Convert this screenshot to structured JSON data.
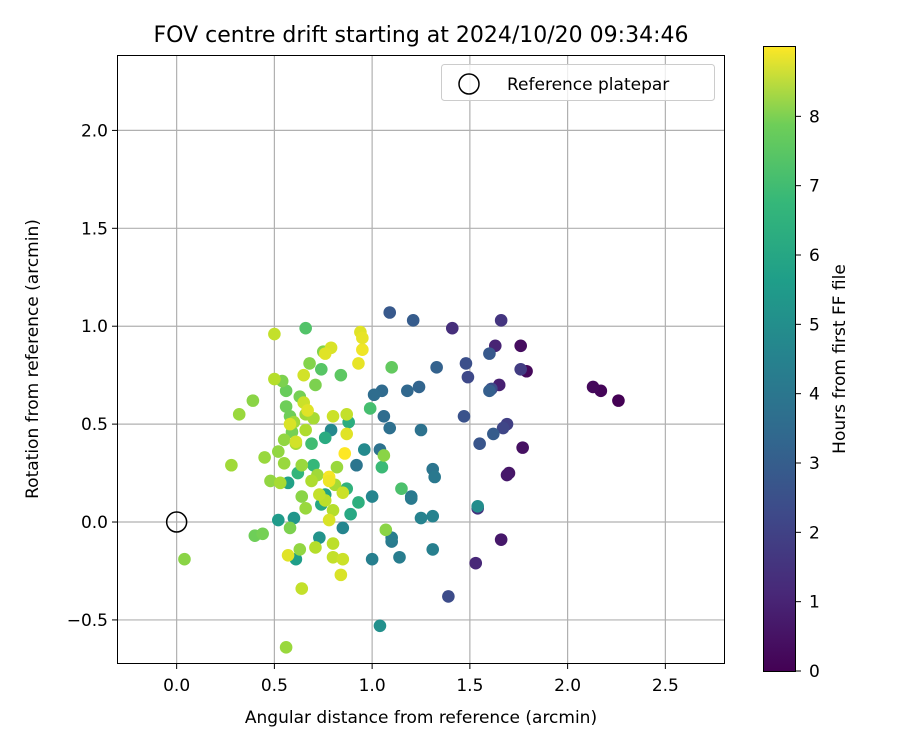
{
  "chart_data": {
    "type": "scatter",
    "title": "FOV centre drift starting at 2024/10/20 09:34:46",
    "xlabel": "Angular distance from reference (arcmin)",
    "ylabel": "Rotation from reference (arcmin)",
    "xlim": [
      -0.3,
      2.8
    ],
    "ylim": [
      -0.72,
      2.38
    ],
    "xticks": [
      0.0,
      0.5,
      1.0,
      1.5,
      2.0,
      2.5
    ],
    "xtick_labels": [
      "0.0",
      "0.5",
      "1.0",
      "1.5",
      "2.0",
      "2.5"
    ],
    "yticks": [
      -0.5,
      0.0,
      0.5,
      1.0,
      1.5,
      2.0
    ],
    "ytick_labels": [
      "−0.5",
      "0.0",
      "0.5",
      "1.0",
      "1.5",
      "2.0"
    ],
    "grid": true,
    "legend": {
      "position": "top-right",
      "entries": [
        "Reference platepar"
      ]
    },
    "reference_point": {
      "x": 0.0,
      "y": 0.0,
      "label": "Reference platepar"
    },
    "colorbar": {
      "label": "Hours from first FF file",
      "colormap": "viridis",
      "range": [
        0,
        9
      ],
      "ticks": [
        0,
        1,
        2,
        3,
        4,
        5,
        6,
        7,
        8
      ]
    },
    "points": [
      {
        "x": 2.26,
        "y": 0.62,
        "c": 0.0
      },
      {
        "x": 2.17,
        "y": 0.67,
        "c": 0.1
      },
      {
        "x": 2.13,
        "y": 0.69,
        "c": 0.2
      },
      {
        "x": 1.79,
        "y": 0.77,
        "c": 0.2
      },
      {
        "x": 1.76,
        "y": 0.9,
        "c": 0.3
      },
      {
        "x": 1.77,
        "y": 0.38,
        "c": 0.4
      },
      {
        "x": 1.7,
        "y": 0.25,
        "c": 0.5
      },
      {
        "x": 1.69,
        "y": 0.24,
        "c": 0.6
      },
      {
        "x": 1.66,
        "y": -0.09,
        "c": 0.6
      },
      {
        "x": 1.65,
        "y": 0.7,
        "c": 0.8
      },
      {
        "x": 1.63,
        "y": 0.9,
        "c": 0.9
      },
      {
        "x": 1.53,
        "y": -0.21,
        "c": 1.0
      },
      {
        "x": 1.41,
        "y": 0.99,
        "c": 1.2
      },
      {
        "x": 1.54,
        "y": 0.07,
        "c": 1.3
      },
      {
        "x": 1.66,
        "y": 1.03,
        "c": 1.4
      },
      {
        "x": 1.76,
        "y": 0.78,
        "c": 1.6
      },
      {
        "x": 1.69,
        "y": 0.5,
        "c": 1.7
      },
      {
        "x": 1.67,
        "y": 0.48,
        "c": 1.9
      },
      {
        "x": 1.49,
        "y": 0.74,
        "c": 2.0
      },
      {
        "x": 1.61,
        "y": 0.68,
        "c": 2.1
      },
      {
        "x": 1.39,
        "y": -0.38,
        "c": 2.1
      },
      {
        "x": 1.48,
        "y": 0.81,
        "c": 2.2
      },
      {
        "x": 1.47,
        "y": 0.54,
        "c": 2.3
      },
      {
        "x": 1.55,
        "y": 0.4,
        "c": 2.4
      },
      {
        "x": 1.6,
        "y": 0.86,
        "c": 2.5
      },
      {
        "x": 1.62,
        "y": 0.45,
        "c": 2.6
      },
      {
        "x": 1.6,
        "y": 0.67,
        "c": 2.7
      },
      {
        "x": 1.09,
        "y": 1.07,
        "c": 2.5
      },
      {
        "x": 1.21,
        "y": 1.03,
        "c": 2.6
      },
      {
        "x": 1.33,
        "y": 0.79,
        "c": 2.8
      },
      {
        "x": 1.24,
        "y": 0.69,
        "c": 2.9
      },
      {
        "x": 1.18,
        "y": 0.67,
        "c": 3.0
      },
      {
        "x": 1.05,
        "y": 0.67,
        "c": 3.1
      },
      {
        "x": 1.01,
        "y": 0.65,
        "c": 3.2
      },
      {
        "x": 1.06,
        "y": 0.54,
        "c": 3.2
      },
      {
        "x": 1.09,
        "y": 0.48,
        "c": 3.3
      },
      {
        "x": 1.25,
        "y": 0.47,
        "c": 3.4
      },
      {
        "x": 1.04,
        "y": 0.37,
        "c": 3.4
      },
      {
        "x": 0.92,
        "y": 0.29,
        "c": 3.5
      },
      {
        "x": 1.31,
        "y": 0.27,
        "c": 3.5
      },
      {
        "x": 1.32,
        "y": 0.23,
        "c": 3.6
      },
      {
        "x": 1.2,
        "y": 0.13,
        "c": 3.6
      },
      {
        "x": 1.2,
        "y": 0.12,
        "c": 3.7
      },
      {
        "x": 1.1,
        "y": -0.1,
        "c": 3.7
      },
      {
        "x": 1.1,
        "y": -0.08,
        "c": 3.8
      },
      {
        "x": 1.14,
        "y": -0.18,
        "c": 3.8
      },
      {
        "x": 1.0,
        "y": -0.19,
        "c": 3.9
      },
      {
        "x": 1.31,
        "y": -0.14,
        "c": 3.9
      },
      {
        "x": 1.25,
        "y": 0.02,
        "c": 4.0
      },
      {
        "x": 1.31,
        "y": 0.03,
        "c": 4.0
      },
      {
        "x": 1.0,
        "y": 0.13,
        "c": 4.1
      },
      {
        "x": 0.85,
        "y": -0.03,
        "c": 4.1
      },
      {
        "x": 0.79,
        "y": 0.47,
        "c": 4.2
      },
      {
        "x": 0.96,
        "y": 0.37,
        "c": 4.3
      },
      {
        "x": 1.54,
        "y": 0.08,
        "c": 4.4
      },
      {
        "x": 1.04,
        "y": -0.53,
        "c": 4.5
      },
      {
        "x": 0.73,
        "y": -0.08,
        "c": 4.6
      },
      {
        "x": 0.6,
        "y": 0.02,
        "c": 4.7
      },
      {
        "x": 0.52,
        "y": 0.01,
        "c": 4.9
      },
      {
        "x": 0.61,
        "y": -0.19,
        "c": 5.0
      },
      {
        "x": 0.57,
        "y": 0.2,
        "c": 5.1
      },
      {
        "x": 0.76,
        "y": 0.14,
        "c": 5.2
      },
      {
        "x": 0.74,
        "y": 0.09,
        "c": 5.3
      },
      {
        "x": 0.89,
        "y": 0.04,
        "c": 5.4
      },
      {
        "x": 0.76,
        "y": 0.43,
        "c": 5.5
      },
      {
        "x": 0.88,
        "y": 0.51,
        "c": 5.6
      },
      {
        "x": 0.93,
        "y": 0.1,
        "c": 5.7
      },
      {
        "x": 0.87,
        "y": 0.17,
        "c": 5.8
      },
      {
        "x": 0.62,
        "y": 0.25,
        "c": 5.9
      },
      {
        "x": 0.7,
        "y": 0.29,
        "c": 6.0
      },
      {
        "x": 1.05,
        "y": 0.28,
        "c": 6.1
      },
      {
        "x": 0.69,
        "y": 0.4,
        "c": 6.2
      },
      {
        "x": 0.99,
        "y": 0.58,
        "c": 6.3
      },
      {
        "x": 1.15,
        "y": 0.17,
        "c": 6.4
      },
      {
        "x": 0.66,
        "y": 0.99,
        "c": 6.5
      },
      {
        "x": 0.74,
        "y": 0.78,
        "c": 6.6
      },
      {
        "x": 0.84,
        "y": 0.75,
        "c": 6.7
      },
      {
        "x": 1.1,
        "y": 0.79,
        "c": 6.8
      },
      {
        "x": 0.56,
        "y": 0.67,
        "c": 6.9
      },
      {
        "x": 0.58,
        "y": 0.54,
        "c": 7.0
      },
      {
        "x": 0.56,
        "y": 0.59,
        "c": 7.0
      },
      {
        "x": 0.59,
        "y": 0.46,
        "c": 7.1
      },
      {
        "x": 0.63,
        "y": 0.64,
        "c": 7.1
      },
      {
        "x": 0.54,
        "y": 0.72,
        "c": 7.2
      },
      {
        "x": 0.71,
        "y": 0.7,
        "c": 7.2
      },
      {
        "x": 0.75,
        "y": 0.87,
        "c": 7.3
      },
      {
        "x": 0.68,
        "y": 0.81,
        "c": 7.3
      },
      {
        "x": 1.07,
        "y": -0.04,
        "c": 7.4
      },
      {
        "x": 1.06,
        "y": 0.34,
        "c": 7.4
      },
      {
        "x": 0.52,
        "y": 0.36,
        "c": 7.5
      },
      {
        "x": 0.55,
        "y": 0.42,
        "c": 7.5
      },
      {
        "x": 0.64,
        "y": 0.29,
        "c": 7.6
      },
      {
        "x": 0.55,
        "y": 0.3,
        "c": 7.6
      },
      {
        "x": 0.6,
        "y": 0.51,
        "c": 7.7
      },
      {
        "x": 0.66,
        "y": 0.55,
        "c": 7.7
      },
      {
        "x": 0.7,
        "y": 0.53,
        "c": 7.8
      },
      {
        "x": 0.61,
        "y": 0.4,
        "c": 7.8
      },
      {
        "x": 0.66,
        "y": 0.47,
        "c": 7.9
      },
      {
        "x": 0.48,
        "y": 0.21,
        "c": 7.5
      },
      {
        "x": 0.45,
        "y": 0.33,
        "c": 7.6
      },
      {
        "x": 0.39,
        "y": 0.62,
        "c": 7.4
      },
      {
        "x": 0.32,
        "y": 0.55,
        "c": 7.6
      },
      {
        "x": 0.28,
        "y": 0.29,
        "c": 7.7
      },
      {
        "x": 0.4,
        "y": -0.07,
        "c": 7.0
      },
      {
        "x": 0.44,
        "y": -0.06,
        "c": 7.1
      },
      {
        "x": 0.58,
        "y": -0.03,
        "c": 7.2
      },
      {
        "x": 0.63,
        "y": -0.14,
        "c": 7.5
      },
      {
        "x": 0.66,
        "y": 0.07,
        "c": 7.6
      },
      {
        "x": 0.53,
        "y": 0.2,
        "c": 7.8
      },
      {
        "x": 0.64,
        "y": 0.13,
        "c": 7.4
      },
      {
        "x": 0.82,
        "y": 0.28,
        "c": 7.6
      },
      {
        "x": 0.72,
        "y": 0.24,
        "c": 7.7
      },
      {
        "x": 0.81,
        "y": 0.19,
        "c": 7.8
      },
      {
        "x": 0.69,
        "y": 0.21,
        "c": 7.9
      },
      {
        "x": 0.8,
        "y": 0.06,
        "c": 8.0
      },
      {
        "x": 0.76,
        "y": 0.11,
        "c": 8.1
      },
      {
        "x": 0.73,
        "y": 0.14,
        "c": 8.2
      },
      {
        "x": 0.85,
        "y": 0.15,
        "c": 8.3
      },
      {
        "x": 0.8,
        "y": -0.11,
        "c": 8.1
      },
      {
        "x": 0.8,
        "y": -0.18,
        "c": 8.2
      },
      {
        "x": 0.71,
        "y": -0.13,
        "c": 8.0
      },
      {
        "x": 0.85,
        "y": -0.19,
        "c": 8.3
      },
      {
        "x": 0.84,
        "y": -0.27,
        "c": 8.5
      },
      {
        "x": 0.64,
        "y": -0.34,
        "c": 8.2
      },
      {
        "x": 0.56,
        "y": -0.64,
        "c": 7.6
      },
      {
        "x": 0.57,
        "y": -0.17,
        "c": 8.6
      },
      {
        "x": 0.04,
        "y": -0.19,
        "c": 7.4
      },
      {
        "x": 0.5,
        "y": 0.96,
        "c": 8.2
      },
      {
        "x": 0.65,
        "y": 0.75,
        "c": 8.4
      },
      {
        "x": 0.79,
        "y": 0.89,
        "c": 8.5
      },
      {
        "x": 0.76,
        "y": 0.86,
        "c": 8.6
      },
      {
        "x": 0.5,
        "y": 0.73,
        "c": 8.0
      },
      {
        "x": 0.65,
        "y": 0.61,
        "c": 8.3
      },
      {
        "x": 0.58,
        "y": 0.5,
        "c": 8.5
      },
      {
        "x": 0.61,
        "y": 0.41,
        "c": 8.4
      },
      {
        "x": 0.67,
        "y": 0.57,
        "c": 8.6
      },
      {
        "x": 0.87,
        "y": 0.55,
        "c": 8.2
      },
      {
        "x": 0.8,
        "y": 0.54,
        "c": 8.3
      },
      {
        "x": 0.87,
        "y": 0.45,
        "c": 8.6
      },
      {
        "x": 0.93,
        "y": 0.81,
        "c": 8.7
      },
      {
        "x": 0.95,
        "y": 0.88,
        "c": 8.8
      },
      {
        "x": 0.94,
        "y": 0.97,
        "c": 8.6
      },
      {
        "x": 0.95,
        "y": 0.94,
        "c": 8.7
      },
      {
        "x": 0.78,
        "y": 0.23,
        "c": 8.9
      },
      {
        "x": 0.78,
        "y": 0.21,
        "c": 8.8
      },
      {
        "x": 0.86,
        "y": 0.35,
        "c": 9.0
      },
      {
        "x": 0.78,
        "y": 0.01,
        "c": 8.5
      }
    ]
  }
}
